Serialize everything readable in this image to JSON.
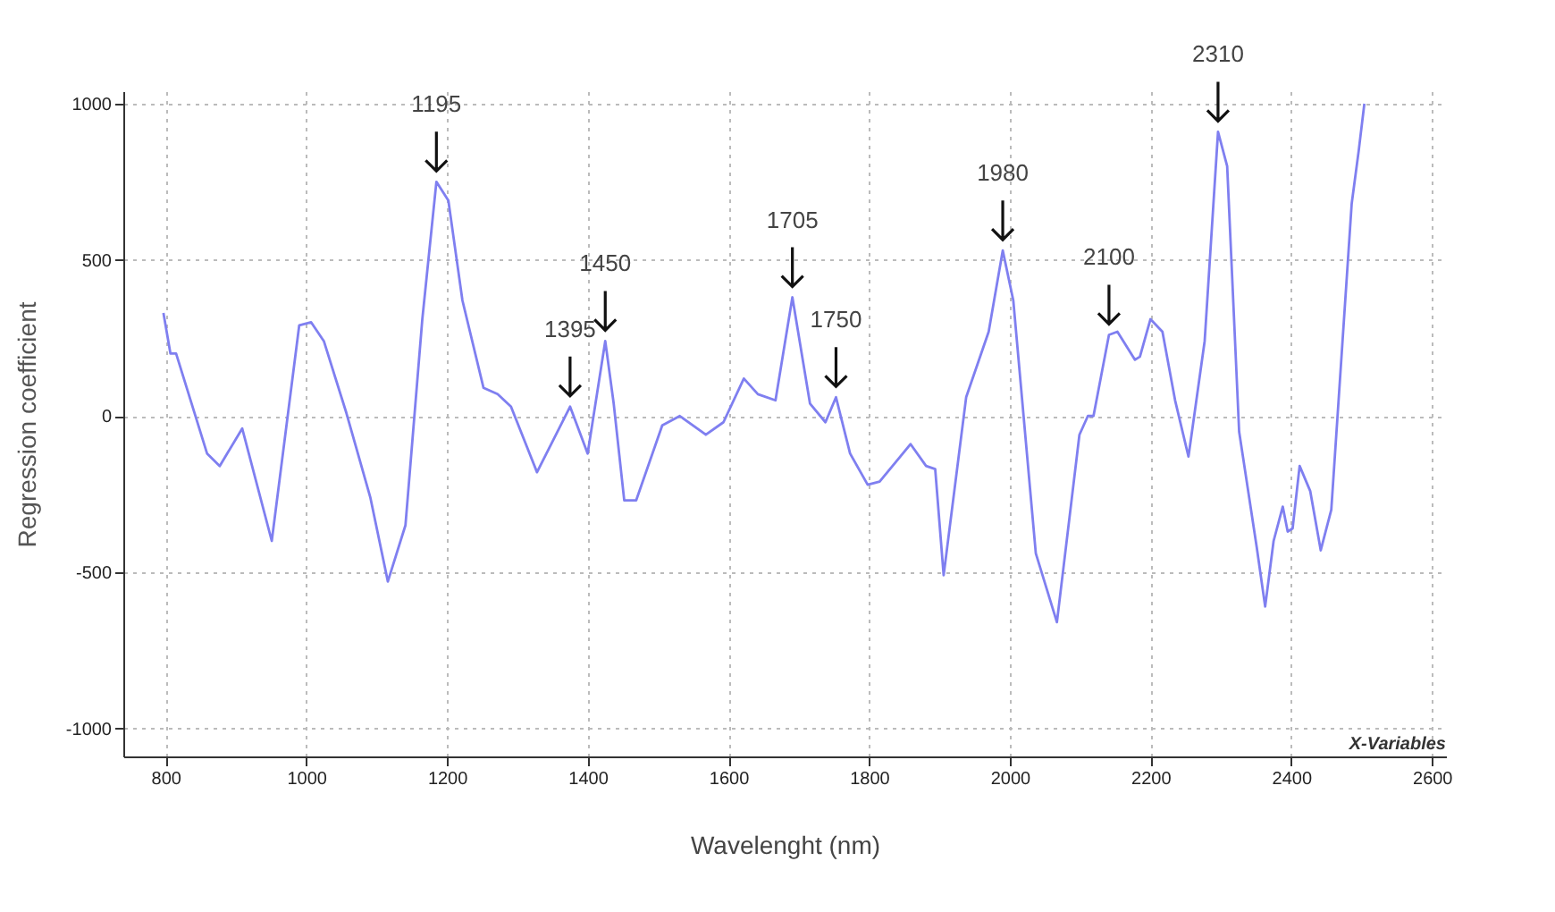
{
  "chart_data": {
    "type": "line",
    "xlabel": "Wavelenght (nm)",
    "ylabel": "Regression coefficient",
    "x": [
      797,
      807,
      815,
      859,
      877,
      909,
      951,
      990,
      1007,
      1025,
      1057,
      1091,
      1116,
      1141,
      1165,
      1185,
      1202,
      1222,
      1252,
      1272,
      1291,
      1328,
      1375,
      1400,
      1425,
      1437,
      1452,
      1469,
      1506,
      1531,
      1568,
      1593,
      1622,
      1642,
      1667,
      1691,
      1716,
      1738,
      1753,
      1773,
      1798,
      1815,
      1859,
      1881,
      1894,
      1906,
      1938,
      1970,
      1990,
      2005,
      2037,
      2067,
      2099,
      2111,
      2119,
      2141,
      2153,
      2178,
      2185,
      2200,
      2217,
      2235,
      2254,
      2277,
      2296,
      2309,
      2326,
      2351,
      2363,
      2375,
      2388,
      2395,
      2402,
      2412,
      2427,
      2442,
      2457,
      2486,
      2496,
      2504
    ],
    "series": [
      {
        "color": "#7f7ff0",
        "values": [
          330,
          200,
          200,
          -120,
          -160,
          -40,
          -400,
          290,
          300,
          240,
          10,
          -260,
          -530,
          -350,
          310,
          750,
          690,
          370,
          90,
          70,
          30,
          -180,
          30,
          -120,
          240,
          40,
          -270,
          -270,
          -30,
          0,
          -60,
          -20,
          120,
          70,
          50,
          380,
          40,
          -20,
          60,
          -120,
          -220,
          -210,
          -90,
          -160,
          -170,
          -510,
          60,
          270,
          530,
          370,
          -440,
          -660,
          -60,
          0,
          0,
          260,
          270,
          180,
          190,
          310,
          270,
          50,
          -130,
          240,
          910,
          800,
          -50,
          -420,
          -610,
          -400,
          -290,
          -370,
          -360,
          -160,
          -240,
          -430,
          -300,
          680,
          850,
          1000
        ]
      }
    ],
    "xlim": [
      740,
      2620
    ],
    "ylim": [
      -1090,
      1040
    ],
    "xticks": [
      800,
      1000,
      1200,
      1400,
      1600,
      1800,
      2000,
      2200,
      2400,
      2600
    ],
    "yticks": [
      -1000,
      -500,
      0,
      500,
      1000
    ],
    "grid": true,
    "marker": "none",
    "line_style": "solid",
    "legend": false,
    "annotations": [
      {
        "text": "1195",
        "x": 1185,
        "y": 750
      },
      {
        "text": "1395",
        "x": 1375,
        "y": 30
      },
      {
        "text": "1450",
        "x": 1425,
        "y": 240
      },
      {
        "text": "1705",
        "x": 1691,
        "y": 380
      },
      {
        "text": "1750",
        "x": 1753,
        "y": 60
      },
      {
        "text": "1980",
        "x": 1990,
        "y": 530
      },
      {
        "text": "2100",
        "x": 2141,
        "y": 260
      },
      {
        "text": "2310",
        "x": 2296,
        "y": 910
      },
      "X-Variables"
    ]
  }
}
